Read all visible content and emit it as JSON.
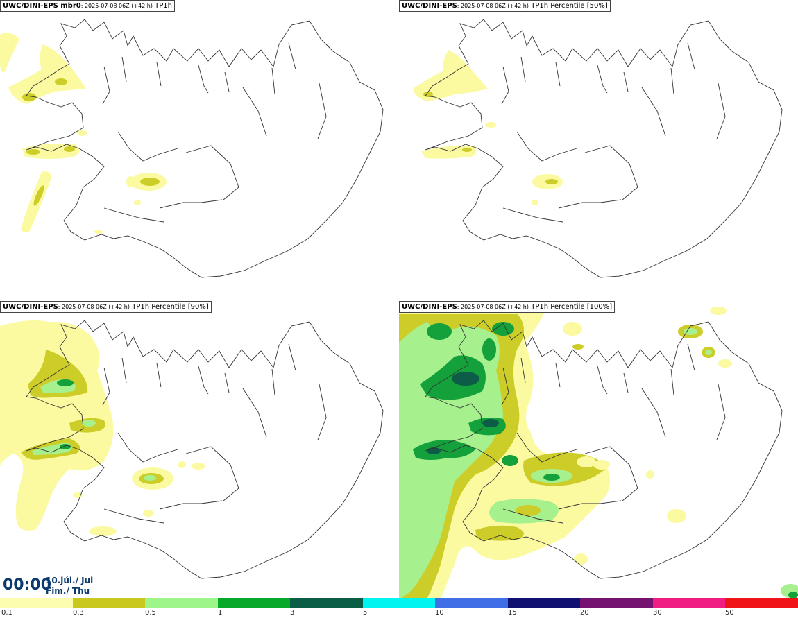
{
  "panels": [
    {
      "model": "UWC/DINI-EPS mbr0",
      "run": "2025-07-08 06Z (+42 h)",
      "field": "TP1h"
    },
    {
      "model": "UWC/DINI-EPS",
      "run": "2025-07-08 06Z (+42 h)",
      "field": "TP1h Percentile [50%]"
    },
    {
      "model": "UWC/DINI-EPS",
      "run": "2025-07-08 06Z (+42 h)",
      "field": "TP1h Percentile [90%]"
    },
    {
      "model": "UWC/DINI-EPS",
      "run": "2025-07-08 06Z (+42 h)",
      "field": "TP1h Percentile [100%]"
    }
  ],
  "valid_time": {
    "time": "00:00",
    "date": "10.júl./ Jul",
    "day": "Fim./ Thu"
  },
  "legend": {
    "labels": [
      "0.1",
      "0.3",
      "0.5",
      "1",
      "3",
      "5",
      "10",
      "15",
      "20",
      "30",
      "50"
    ],
    "colors": [
      "#fdfdb0",
      "#c8c81e",
      "#9ef58a",
      "#08a82a",
      "#0a5e46",
      "#00f4f0",
      "#3f6ee6",
      "#101070",
      "#741470",
      "#f01e82",
      "#f01418"
    ]
  },
  "colors": {
    "light": "#fbfaa0",
    "olive": "#cdcd2a",
    "lightgreen": "#a6f08e",
    "green": "#14a03a",
    "darkgreen": "#0d5c47",
    "coast": "#333333"
  }
}
